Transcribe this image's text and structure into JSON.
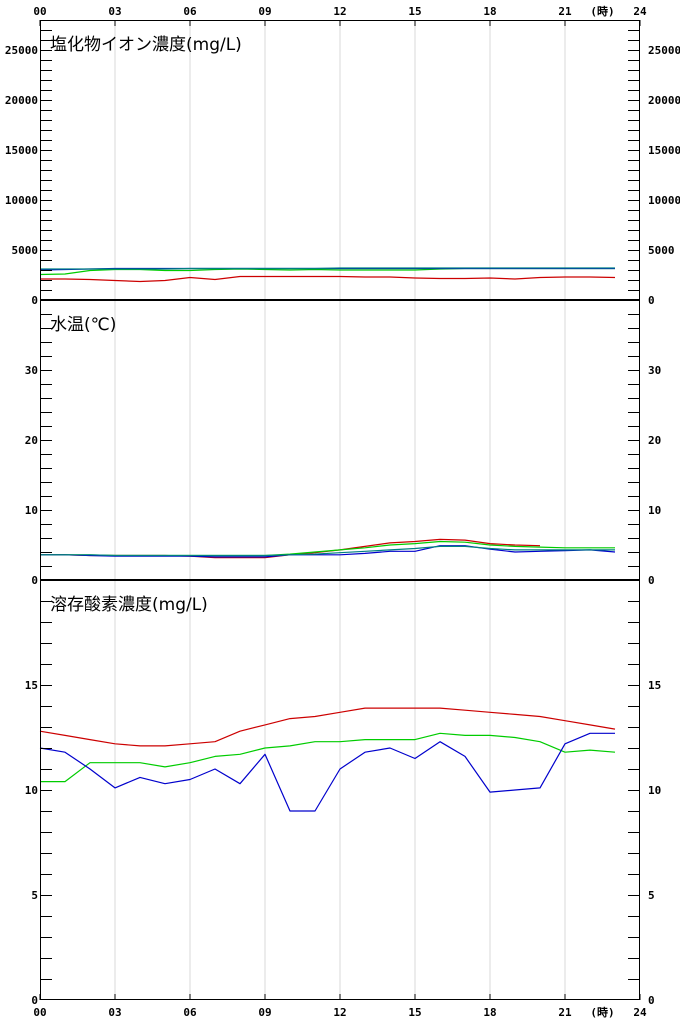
{
  "chart_data": {
    "type": "line",
    "x_ticks": [
      "00",
      "03",
      "06",
      "09",
      "12",
      "15",
      "18",
      "21",
      "24"
    ],
    "hour_unit_label": "(時)",
    "series_colors": [
      "#cc0000",
      "#00cc00",
      "#0000cc",
      "#008080"
    ],
    "panels": [
      {
        "title": "塩化物イオン濃度(mg/L)",
        "ylim": [
          0,
          28000
        ],
        "y_ticks": [
          0,
          5000,
          10000,
          15000,
          20000,
          25000
        ],
        "y_tick_labels": [
          "0",
          "5000",
          "10000",
          "15000",
          "20000",
          "25000"
        ],
        "minor_step": 1000,
        "series": [
          {
            "color": "#cc0000",
            "x": [
              0,
              1,
              2,
              3,
              4,
              5,
              6,
              7,
              8,
              9,
              10,
              11,
              12,
              13,
              14,
              15,
              16,
              17,
              18,
              19,
              20,
              21,
              22,
              23
            ],
            "y": [
              2100,
              2100,
              2050,
              1950,
              1850,
              1950,
              2250,
              2050,
              2350,
              2350,
              2350,
              2350,
              2350,
              2300,
              2300,
              2200,
              2150,
              2150,
              2200,
              2100,
              2250,
              2300,
              2300,
              2250
            ]
          },
          {
            "color": "#00cc00",
            "x": [
              0,
              1,
              2,
              3,
              4,
              5,
              6,
              7,
              8,
              9,
              10,
              11,
              12,
              13,
              14,
              15,
              16,
              17,
              18,
              19,
              20,
              21,
              22,
              23
            ],
            "y": [
              2550,
              2600,
              2950,
              3050,
              3050,
              2950,
              2950,
              3050,
              3100,
              3050,
              3000,
              3050,
              3000,
              3000,
              3000,
              3000,
              3100,
              3150,
              3150,
              3150,
              3150,
              3150,
              3150,
              3150
            ]
          },
          {
            "color": "#0000cc",
            "x": [
              0,
              1,
              2,
              3,
              4,
              5,
              6,
              7,
              8,
              9,
              10,
              11,
              12,
              13,
              14,
              15,
              16,
              17,
              18,
              19,
              20,
              21,
              22,
              23
            ],
            "y": [
              3000,
              3050,
              3100,
              3150,
              3150,
              3150,
              3150,
              3150,
              3150,
              3150,
              3150,
              3150,
              3150,
              3150,
              3150,
              3150,
              3150,
              3150,
              3150,
              3150,
              3150,
              3150,
              3150,
              3150
            ]
          },
          {
            "color": "#008080",
            "x": [
              0,
              1,
              2,
              3,
              4,
              5,
              6,
              7,
              8,
              9,
              10,
              11,
              12,
              13,
              14,
              15,
              16,
              17,
              18,
              19,
              20,
              21,
              22,
              23
            ],
            "y": [
              3100,
              3100,
              3100,
              3100,
              3100,
              3100,
              3150,
              3150,
              3150,
              3150,
              3150,
              3150,
              3200,
              3200,
              3200,
              3200,
              3200,
              3200,
              3200,
              3200,
              3200,
              3200,
              3200,
              3200
            ]
          }
        ]
      },
      {
        "title": "水温(℃)",
        "ylim": [
          0,
          40
        ],
        "y_ticks": [
          0,
          10,
          20,
          30
        ],
        "y_tick_labels": [
          "0",
          "10",
          "20",
          "30"
        ],
        "minor_step": 2,
        "series": [
          {
            "color": "#cc0000",
            "x": [
              0,
              1,
              2,
              3,
              4,
              5,
              6,
              7,
              8,
              9,
              10,
              11,
              12,
              13,
              14,
              15,
              16,
              17,
              18,
              19,
              20
            ],
            "y": [
              3.6,
              3.6,
              3.5,
              3.5,
              3.5,
              3.5,
              3.4,
              3.2,
              3.2,
              3.2,
              3.6,
              3.9,
              4.3,
              4.8,
              5.3,
              5.5,
              5.8,
              5.7,
              5.2,
              5.0,
              4.9
            ]
          },
          {
            "color": "#00cc00",
            "x": [
              0,
              1,
              2,
              3,
              4,
              5,
              6,
              7,
              8,
              9,
              10,
              11,
              12,
              13,
              14,
              15,
              16,
              17,
              18,
              19,
              20,
              21,
              22,
              23
            ],
            "y": [
              3.6,
              3.6,
              3.6,
              3.5,
              3.5,
              3.5,
              3.5,
              3.5,
              3.5,
              3.5,
              3.7,
              4.0,
              4.3,
              4.6,
              5.0,
              5.2,
              5.5,
              5.4,
              5.0,
              4.8,
              4.7,
              4.6,
              4.6,
              4.6
            ]
          },
          {
            "color": "#0000cc",
            "x": [
              0,
              1,
              2,
              3,
              4,
              5,
              6,
              7,
              8,
              9,
              10,
              11,
              12,
              13,
              14,
              15,
              16,
              17,
              18,
              19,
              20,
              21,
              22,
              23
            ],
            "y": [
              3.6,
              3.6,
              3.5,
              3.4,
              3.4,
              3.4,
              3.4,
              3.3,
              3.3,
              3.3,
              3.6,
              3.6,
              3.6,
              3.8,
              4.1,
              4.1,
              4.9,
              4.9,
              4.4,
              4.0,
              4.1,
              4.2,
              4.3,
              4.0
            ]
          },
          {
            "color": "#008080",
            "x": [
              0,
              1,
              2,
              3,
              4,
              5,
              6,
              7,
              8,
              9,
              10,
              11,
              12,
              13,
              14,
              15,
              16,
              17,
              18,
              19,
              20,
              21,
              22,
              23
            ],
            "y": [
              3.6,
              3.6,
              3.6,
              3.5,
              3.5,
              3.5,
              3.5,
              3.5,
              3.5,
              3.5,
              3.6,
              3.7,
              3.9,
              4.1,
              4.3,
              4.5,
              4.8,
              4.8,
              4.5,
              4.3,
              4.3,
              4.3,
              4.3,
              4.3
            ]
          }
        ]
      },
      {
        "title": "溶存酸素濃度(mg/L)",
        "ylim": [
          0,
          20
        ],
        "y_ticks": [
          0,
          5,
          10,
          15
        ],
        "y_tick_labels": [
          "0",
          "5",
          "10",
          "15"
        ],
        "minor_step": 1,
        "series": [
          {
            "color": "#cc0000",
            "x": [
              0,
              1,
              2,
              3,
              4,
              5,
              6,
              7,
              8,
              9,
              10,
              11,
              12,
              13,
              14,
              15,
              16,
              17,
              18,
              19,
              20,
              21,
              22,
              23
            ],
            "y": [
              12.8,
              12.6,
              12.4,
              12.2,
              12.1,
              12.1,
              12.2,
              12.3,
              12.8,
              13.1,
              13.4,
              13.5,
              13.7,
              13.9,
              13.9,
              13.9,
              13.9,
              13.8,
              13.7,
              13.6,
              13.5,
              13.3,
              13.1,
              12.9
            ]
          },
          {
            "color": "#00cc00",
            "x": [
              0,
              1,
              2,
              3,
              4,
              5,
              6,
              7,
              8,
              9,
              10,
              11,
              12,
              13,
              14,
              15,
              16,
              17,
              18,
              19,
              20,
              21,
              22,
              23
            ],
            "y": [
              10.4,
              10.4,
              11.3,
              11.3,
              11.3,
              11.1,
              11.3,
              11.6,
              11.7,
              12.0,
              12.1,
              12.3,
              12.3,
              12.4,
              12.4,
              12.4,
              12.7,
              12.6,
              12.6,
              12.5,
              12.3,
              11.8,
              11.9,
              11.8
            ]
          },
          {
            "color": "#0000cc",
            "x": [
              0,
              1,
              2,
              3,
              4,
              5,
              6,
              7,
              8,
              9,
              10,
              11,
              12,
              13,
              14,
              15,
              16,
              17,
              18,
              19,
              20,
              21,
              22,
              23
            ],
            "y": [
              12.0,
              11.8,
              11.0,
              10.1,
              10.6,
              10.3,
              10.5,
              11.0,
              10.3,
              11.7,
              9.0,
              9.0,
              11.0,
              11.8,
              12.0,
              11.5,
              12.3,
              11.6,
              9.9,
              10.0,
              10.1,
              12.2,
              12.7,
              12.7
            ]
          }
        ]
      }
    ]
  }
}
